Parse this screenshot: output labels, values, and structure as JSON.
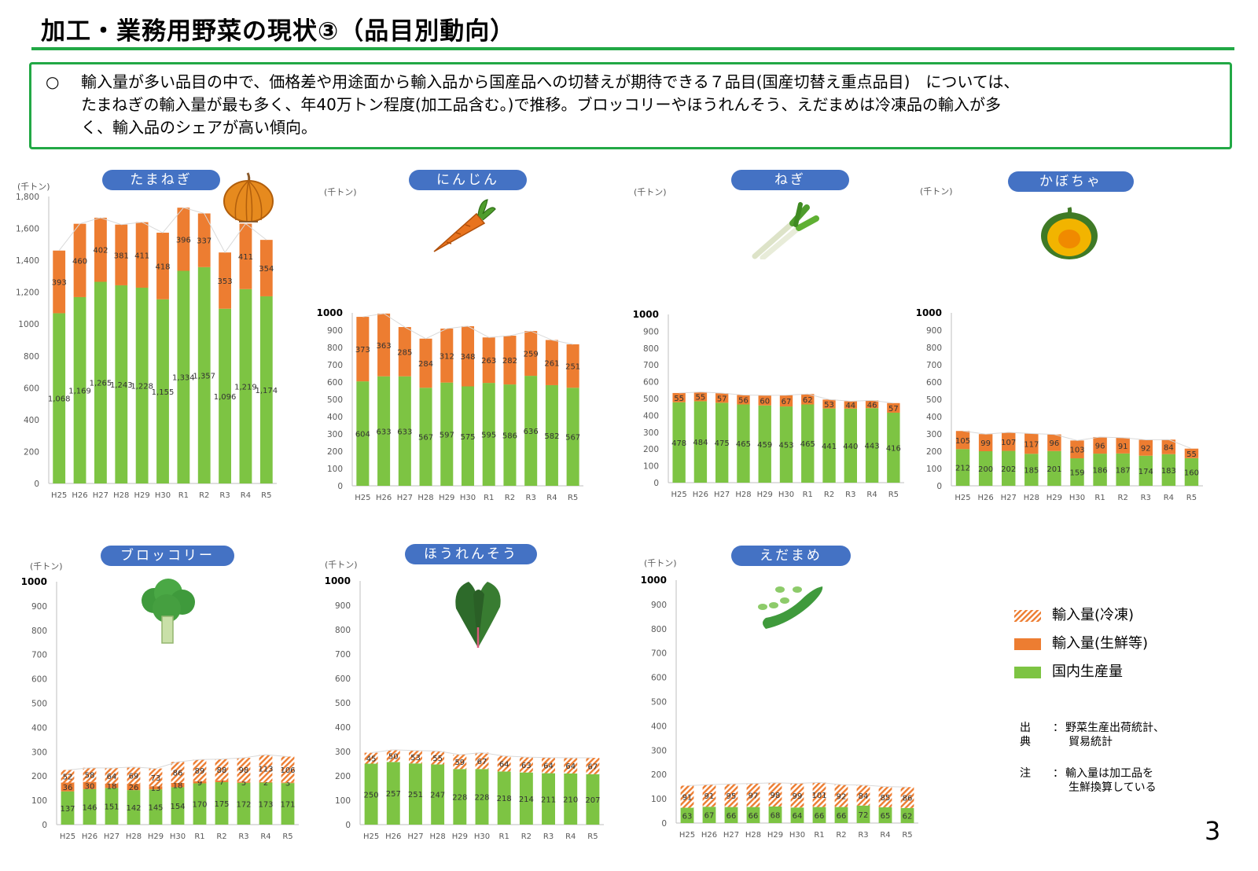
{
  "title": "加工・業務用野菜の現状③（品目別動向）",
  "summary": {
    "bullet": "○",
    "line1": "輸入量が多い品目の中で、価格差や用途面から輸入品から国産品への切替えが期待できる７品目(国産切替え重点品目)　については、",
    "line2": "たまねぎの輸入量が最も多く、年40万トン程度(加工品含む。)で推移。ブロッコリーやほうれんそう、えだまめは冷凍品の輸入が多",
    "line3": "く、輸入品のシェアが高い傾向。"
  },
  "colors": {
    "domestic": "#7dc443",
    "import_fresh": "#ed7d31",
    "import_frozen": "#ed7d31"
  },
  "legend": {
    "frozen": "輸入量(冷凍)",
    "fresh": "輸入量(生鮮等)",
    "domestic": "国内生産量"
  },
  "source": {
    "label1": "出典",
    "text1a": "野菜生産出荷統計、",
    "text1b": "貿易統計",
    "label2": "注",
    "text2a": "輸入量は加工品を",
    "text2b": "生鮮換算している",
    "colon": "："
  },
  "page_number": "3",
  "chart_data": [
    {
      "type": "bar",
      "stacked": true,
      "name": "たまねぎ",
      "unit": "(千トン)",
      "categories": [
        "H25",
        "H26",
        "H27",
        "H28",
        "H29",
        "H30",
        "R1",
        "R2",
        "R3",
        "R4",
        "R5"
      ],
      "ylim": [
        0,
        1800
      ],
      "yticks": [
        "0",
        "200",
        "400",
        "600",
        "800",
        "1000",
        "1,200",
        "1,400",
        "1,600",
        "1,800"
      ],
      "series": [
        {
          "key": "domestic",
          "values": [
            1068,
            1169,
            1265,
            1243,
            1228,
            1155,
            1334,
            1357,
            1096,
            1219,
            1174
          ],
          "labels": [
            "1,068",
            "1,169",
            "1,265",
            "1,243",
            "1,228",
            "1,155",
            "1,334",
            "1,357",
            "1,096",
            "1,219",
            "1,174"
          ]
        },
        {
          "key": "fresh",
          "values": [
            393,
            460,
            402,
            381,
            411,
            418,
            396,
            337,
            353,
            411,
            354
          ],
          "labels": [
            "393",
            "460",
            "402",
            "381",
            "411",
            "418",
            "396",
            "337",
            "353",
            "411",
            "354"
          ]
        }
      ]
    },
    {
      "type": "bar",
      "stacked": true,
      "name": "にんじん",
      "unit": "(千トン)",
      "categories": [
        "H25",
        "H26",
        "H27",
        "H28",
        "H29",
        "H30",
        "R1",
        "R2",
        "R3",
        "R4",
        "R5"
      ],
      "ylim": [
        0,
        1000
      ],
      "yticks": [
        "0",
        "100",
        "200",
        "300",
        "400",
        "500",
        "600",
        "700",
        "800",
        "900",
        "1000"
      ],
      "series": [
        {
          "key": "domestic",
          "values": [
            604,
            633,
            633,
            567,
            597,
            575,
            595,
            586,
            636,
            582,
            567
          ],
          "labels": [
            "604",
            "633",
            "633",
            "567",
            "597",
            "575",
            "595",
            "586",
            "636",
            "582",
            "567"
          ]
        },
        {
          "key": "fresh",
          "values": [
            373,
            363,
            285,
            284,
            312,
            348,
            263,
            282,
            259,
            261,
            251
          ],
          "labels": [
            "373",
            "363",
            "285",
            "284",
            "312",
            "348",
            "263",
            "282",
            "259",
            "261",
            "251"
          ]
        }
      ]
    },
    {
      "type": "bar",
      "stacked": true,
      "name": "ねぎ",
      "unit": "(千トン)",
      "categories": [
        "H25",
        "H26",
        "H27",
        "H28",
        "H29",
        "H30",
        "R1",
        "R2",
        "R3",
        "R4",
        "R5"
      ],
      "ylim": [
        0,
        1000
      ],
      "yticks": [
        "0",
        "100",
        "200",
        "300",
        "400",
        "500",
        "600",
        "700",
        "800",
        "900",
        "1000"
      ],
      "series": [
        {
          "key": "domestic",
          "values": [
            478,
            484,
            475,
            465,
            459,
            453,
            465,
            441,
            440,
            443,
            416
          ],
          "labels": [
            "478",
            "484",
            "475",
            "465",
            "459",
            "453",
            "465",
            "441",
            "440",
            "443",
            "416"
          ]
        },
        {
          "key": "fresh",
          "values": [
            55,
            55,
            57,
            56,
            60,
            67,
            62,
            53,
            44,
            46,
            57
          ],
          "labels": [
            "55",
            "55",
            "57",
            "56",
            "60",
            "67",
            "62",
            "53",
            "44",
            "46",
            "57"
          ]
        }
      ]
    },
    {
      "type": "bar",
      "stacked": true,
      "name": "かぼちゃ",
      "unit": "(千トン)",
      "categories": [
        "H25",
        "H26",
        "H27",
        "H28",
        "H29",
        "H30",
        "R1",
        "R2",
        "R3",
        "R4",
        "R5"
      ],
      "ylim": [
        0,
        1000
      ],
      "yticks": [
        "0",
        "100",
        "200",
        "300",
        "400",
        "500",
        "600",
        "700",
        "800",
        "900",
        "1000"
      ],
      "series": [
        {
          "key": "domestic",
          "values": [
            212,
            200,
            202,
            185,
            201,
            159,
            186,
            187,
            174,
            183,
            160
          ],
          "labels": [
            "212",
            "200",
            "202",
            "185",
            "201",
            "159",
            "186",
            "187",
            "174",
            "183",
            "160"
          ]
        },
        {
          "key": "fresh",
          "values": [
            105,
            99,
            107,
            117,
            96,
            103,
            96,
            91,
            92,
            84,
            55
          ],
          "labels": [
            "105",
            "99",
            "107",
            "117",
            "96",
            "103",
            "96",
            "91",
            "92",
            "84",
            "55"
          ]
        }
      ]
    },
    {
      "type": "bar",
      "stacked": true,
      "name": "ブロッコリー",
      "unit": "(千トン)",
      "categories": [
        "H25",
        "H26",
        "H27",
        "H28",
        "H29",
        "H30",
        "R1",
        "R2",
        "R3",
        "R4",
        "R5"
      ],
      "ylim": [
        0,
        1000
      ],
      "yticks": [
        "0",
        "100",
        "200",
        "300",
        "400",
        "500",
        "600",
        "700",
        "800",
        "900",
        "1000"
      ],
      "series": [
        {
          "key": "domestic",
          "values": [
            137,
            146,
            151,
            142,
            145,
            154,
            170,
            175,
            172,
            173,
            171
          ],
          "labels": [
            "137",
            "146",
            "151",
            "142",
            "145",
            "154",
            "170",
            "175",
            "172",
            "173",
            "171"
          ]
        },
        {
          "key": "fresh",
          "values": [
            36,
            30,
            18,
            26,
            13,
            18,
            9,
            7,
            5,
            2,
            3
          ],
          "labels": [
            "36",
            "30",
            "18",
            "26",
            "13",
            "18",
            "9",
            "7",
            "5",
            "2",
            "3"
          ]
        },
        {
          "key": "frozen",
          "values": [
            52,
            58,
            64,
            69,
            73,
            86,
            89,
            88,
            98,
            113,
            106
          ],
          "labels": [
            "52",
            "58",
            "64",
            "69",
            "73",
            "86",
            "89",
            "88",
            "98",
            "113",
            "106"
          ]
        }
      ]
    },
    {
      "type": "bar",
      "stacked": true,
      "name": "ほうれんそう",
      "unit": "(千トン)",
      "categories": [
        "H25",
        "H26",
        "H27",
        "H28",
        "H29",
        "H30",
        "R1",
        "R2",
        "R3",
        "R4",
        "R5"
      ],
      "ylim": [
        0,
        1000
      ],
      "yticks": [
        "0",
        "100",
        "200",
        "300",
        "400",
        "500",
        "600",
        "700",
        "800",
        "900",
        "1000"
      ],
      "series": [
        {
          "key": "domestic",
          "values": [
            250,
            257,
            251,
            247,
            228,
            228,
            218,
            214,
            211,
            210,
            207
          ],
          "labels": [
            "250",
            "257",
            "251",
            "247",
            "228",
            "228",
            "218",
            "214",
            "211",
            "210",
            "207"
          ]
        },
        {
          "key": "frozen",
          "values": [
            45,
            50,
            53,
            55,
            59,
            67,
            64,
            63,
            64,
            64,
            67
          ],
          "labels": [
            "45",
            "50",
            "53",
            "55",
            "59",
            "67",
            "64",
            "63",
            "64",
            "64",
            "67"
          ]
        }
      ]
    },
    {
      "type": "bar",
      "stacked": true,
      "name": "えだまめ",
      "unit": "(千トン)",
      "categories": [
        "H25",
        "H26",
        "H27",
        "H28",
        "H29",
        "H30",
        "R1",
        "R2",
        "R3",
        "R4",
        "R5"
      ],
      "ylim": [
        0,
        1000
      ],
      "yticks": [
        "0",
        "100",
        "200",
        "300",
        "400",
        "500",
        "600",
        "700",
        "800",
        "900",
        "1000"
      ],
      "series": [
        {
          "key": "domestic",
          "values": [
            63,
            67,
            66,
            66,
            68,
            64,
            66,
            66,
            72,
            65,
            62
          ],
          "labels": [
            "63",
            "67",
            "66",
            "66",
            "68",
            "64",
            "66",
            "66",
            "72",
            "65",
            "62"
          ]
        },
        {
          "key": "frozen",
          "values": [
            91,
            91,
            95,
            97,
            98,
            99,
            101,
            92,
            84,
            85,
            86
          ],
          "labels": [
            "91",
            "91",
            "95",
            "97",
            "98",
            "99",
            "101",
            "92",
            "84",
            "85",
            "86"
          ]
        }
      ]
    }
  ]
}
